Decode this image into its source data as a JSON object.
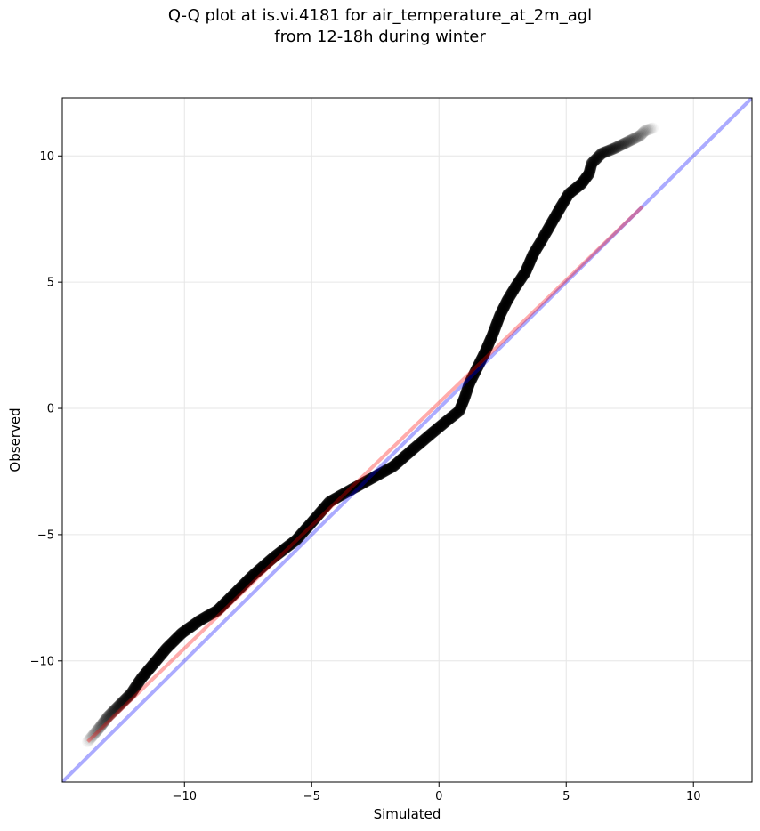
{
  "chart_data": {
    "type": "scatter",
    "title": "Q-Q plot at is.vi.4181 for air_temperature_at_2m_agl",
    "subtitle": "from 12-18h during winter",
    "xlabel": "Simulated",
    "ylabel": "Observed",
    "xlim": [
      -14.8,
      12.3
    ],
    "ylim": [
      -14.8,
      12.3
    ],
    "xticks": [
      -10,
      -5,
      0,
      5,
      10
    ],
    "yticks": [
      -10,
      -5,
      0,
      5,
      10
    ],
    "xtick_labels": [
      "−10",
      "−5",
      "0",
      "5",
      "10"
    ],
    "ytick_labels": [
      "−10",
      "−5",
      "0",
      "5",
      "10"
    ],
    "grid": true,
    "reference_line": {
      "color": "#0000ff",
      "from": [
        -14.8,
        -14.8
      ],
      "to": [
        12.3,
        12.3
      ]
    },
    "fit_line": {
      "color": "#ff0000",
      "from": [
        -13.8,
        -13.2
      ],
      "to": [
        8.0,
        8.0
      ]
    },
    "marker_color": "#000000",
    "quantile_curve": [
      [
        -13.8,
        -13.2
      ],
      [
        -13.3,
        -12.6
      ],
      [
        -13.0,
        -12.2
      ],
      [
        -12.6,
        -11.8
      ],
      [
        -12.1,
        -11.3
      ],
      [
        -11.7,
        -10.7
      ],
      [
        -11.2,
        -10.1
      ],
      [
        -10.7,
        -9.5
      ],
      [
        -10.1,
        -8.9
      ],
      [
        -9.4,
        -8.4
      ],
      [
        -8.7,
        -8.0
      ],
      [
        -8.0,
        -7.3
      ],
      [
        -7.3,
        -6.6
      ],
      [
        -6.5,
        -5.9
      ],
      [
        -5.6,
        -5.2
      ],
      [
        -4.9,
        -4.4
      ],
      [
        -4.3,
        -3.7
      ],
      [
        -3.6,
        -3.3
      ],
      [
        -2.7,
        -2.8
      ],
      [
        -1.8,
        -2.3
      ],
      [
        -1.0,
        -1.6
      ],
      [
        -0.3,
        -1.0
      ],
      [
        0.3,
        -0.5
      ],
      [
        0.8,
        -0.1
      ],
      [
        1.0,
        0.4
      ],
      [
        1.2,
        1.0
      ],
      [
        1.5,
        1.6
      ],
      [
        1.8,
        2.2
      ],
      [
        2.1,
        2.9
      ],
      [
        2.4,
        3.7
      ],
      [
        2.7,
        4.3
      ],
      [
        3.0,
        4.8
      ],
      [
        3.4,
        5.4
      ],
      [
        3.7,
        6.1
      ],
      [
        4.0,
        6.6
      ],
      [
        4.4,
        7.3
      ],
      [
        4.8,
        8.0
      ],
      [
        5.1,
        8.5
      ],
      [
        5.6,
        8.9
      ],
      [
        5.9,
        9.3
      ],
      [
        6.0,
        9.7
      ],
      [
        6.4,
        10.1
      ],
      [
        6.9,
        10.3
      ],
      [
        7.5,
        10.6
      ],
      [
        7.9,
        10.8
      ],
      [
        8.1,
        11.0
      ],
      [
        8.4,
        11.1
      ]
    ]
  }
}
